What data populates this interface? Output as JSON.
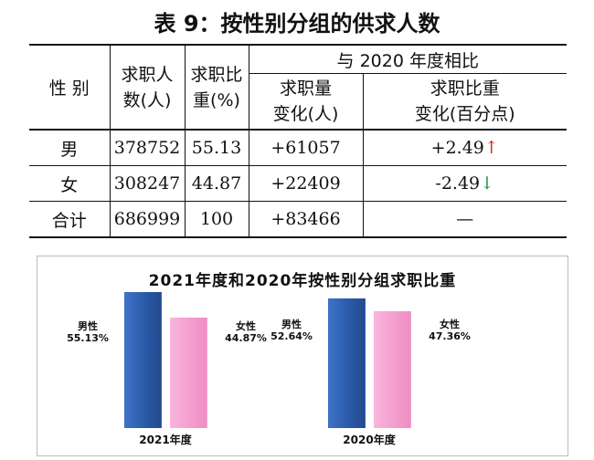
{
  "title": "表 9：按性别分组的供求人数",
  "table": {
    "headers": {
      "gender": "性 别",
      "seekers_l1": "求职人",
      "seekers_l2": "数(人)",
      "share_l1": "求职比",
      "share_l2": "重(%)",
      "compare_group": "与 2020 年度相比",
      "change_count_l1": "求职量",
      "change_count_l2": "变化(人)",
      "change_share_l1": "求职比重",
      "change_share_l2": "变化(百分点)"
    },
    "rows": [
      {
        "gender": "男",
        "seekers": "378752",
        "share": "55.13",
        "change_count": "+61057",
        "change_share": "+2.49",
        "arrow": "↑"
      },
      {
        "gender": "女",
        "seekers": "308247",
        "share": "44.87",
        "change_count": "+22409",
        "change_share": "-2.49",
        "arrow": "↓"
      },
      {
        "gender": "合计",
        "seekers": "686999",
        "share": "100",
        "change_count": "+83466",
        "change_share": "—",
        "arrow": ""
      }
    ]
  },
  "chart_data": {
    "type": "bar",
    "title": "2021年度和2020年按性别分组求职比重",
    "categories": [
      "2021年度",
      "2020年度"
    ],
    "series": [
      {
        "name": "男性",
        "values": [
          55.13,
          52.64
        ],
        "labels": [
          "55.13%",
          "52.64%"
        ]
      },
      {
        "name": "女性",
        "values": [
          44.87,
          47.36
        ],
        "labels": [
          "44.87%",
          "47.36%"
        ]
      }
    ],
    "ylim": [
      0,
      60
    ],
    "grid": false,
    "colors": {
      "male": "#2f62b5",
      "female": "#f5a3d3"
    }
  }
}
